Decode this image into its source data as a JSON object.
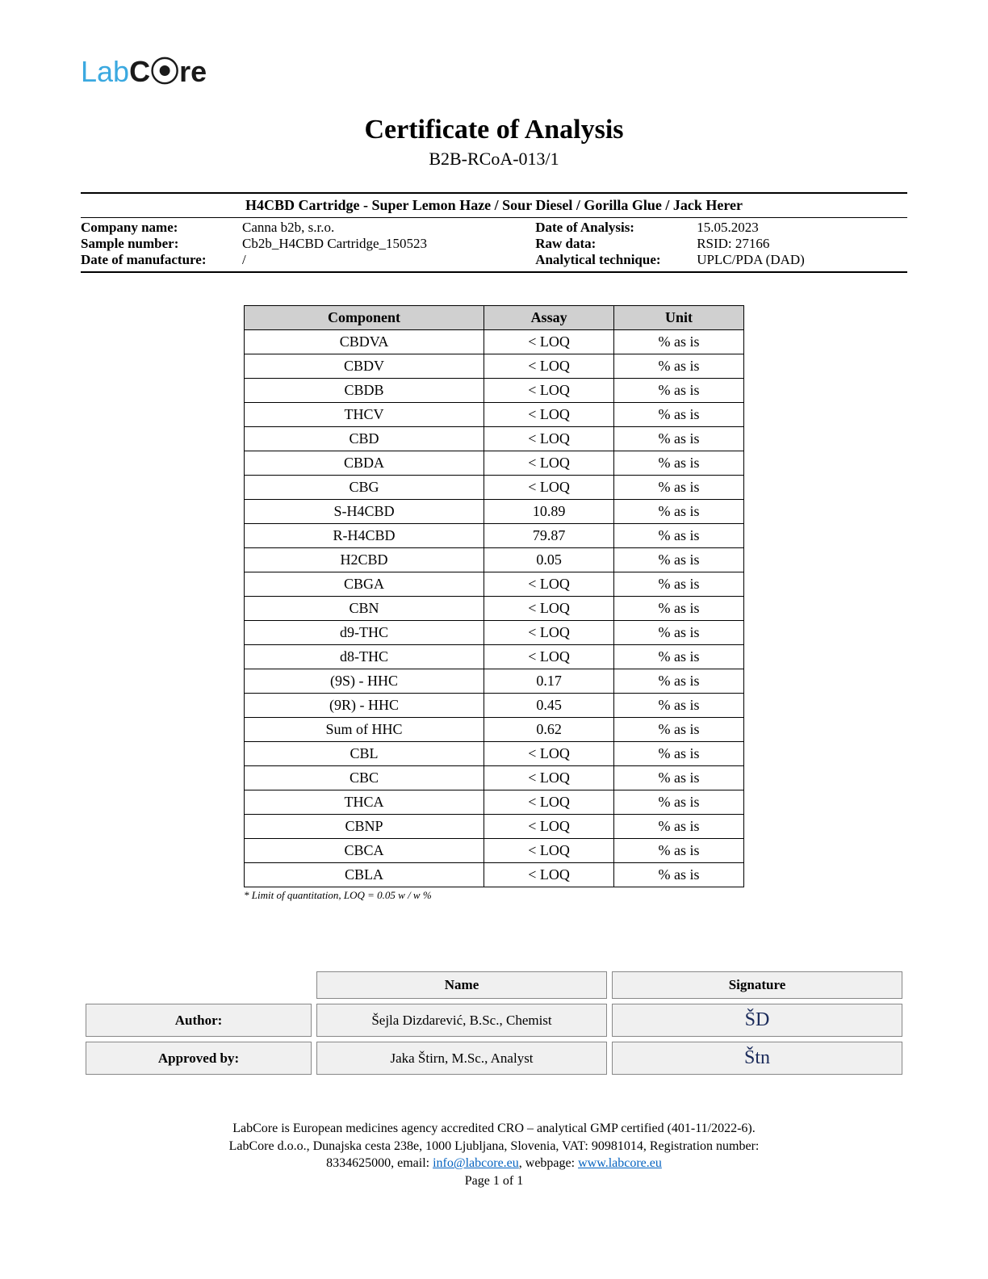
{
  "logo": {
    "part1": "Lab",
    "part2": "Core"
  },
  "title": "Certificate of Analysis",
  "subtitle": "B2B-RCoA-013/1",
  "product_name": "H4CBD Cartridge - Super Lemon Haze / Sour Diesel / Gorilla Glue / Jack Herer",
  "meta": {
    "company_label": "Company name:",
    "company_value": "Canna b2b, s.r.o.",
    "sample_label": "Sample number:",
    "sample_value": "Cb2b_H4CBD Cartridge_150523",
    "manufacture_label": "Date of manufacture:",
    "manufacture_value": "/",
    "date_label": "Date of Analysis:",
    "date_value": "15.05.2023",
    "raw_label": "Raw data:",
    "raw_value": "RSID: 27166",
    "technique_label": "Analytical technique:",
    "technique_value": "UPLC/PDA (DAD)"
  },
  "table": {
    "headers": {
      "component": "Component",
      "assay": "Assay",
      "unit": "Unit"
    },
    "rows": [
      {
        "component": "CBDVA",
        "assay": "< LOQ",
        "unit": "% as is"
      },
      {
        "component": "CBDV",
        "assay": "< LOQ",
        "unit": "% as is"
      },
      {
        "component": "CBDB",
        "assay": "< LOQ",
        "unit": "% as is"
      },
      {
        "component": "THCV",
        "assay": "< LOQ",
        "unit": "% as is"
      },
      {
        "component": "CBD",
        "assay": "< LOQ",
        "unit": "% as is"
      },
      {
        "component": "CBDA",
        "assay": "< LOQ",
        "unit": "% as is"
      },
      {
        "component": "CBG",
        "assay": "< LOQ",
        "unit": "% as is"
      },
      {
        "component": "S-H4CBD",
        "assay": "10.89",
        "unit": "% as is"
      },
      {
        "component": "R-H4CBD",
        "assay": "79.87",
        "unit": "% as is"
      },
      {
        "component": "H2CBD",
        "assay": "0.05",
        "unit": "% as is"
      },
      {
        "component": "CBGA",
        "assay": "< LOQ",
        "unit": "% as is"
      },
      {
        "component": "CBN",
        "assay": "< LOQ",
        "unit": "% as is"
      },
      {
        "component": "d9-THC",
        "assay": "< LOQ",
        "unit": "% as is"
      },
      {
        "component": "d8-THC",
        "assay": "< LOQ",
        "unit": "% as is"
      },
      {
        "component": "(9S) - HHC",
        "assay": "0.17",
        "unit": "% as is"
      },
      {
        "component": "(9R) - HHC",
        "assay": "0.45",
        "unit": "% as is"
      },
      {
        "component": "Sum of HHC",
        "assay": "0.62",
        "unit": "% as is"
      },
      {
        "component": "CBL",
        "assay": "< LOQ",
        "unit": "% as is"
      },
      {
        "component": "CBC",
        "assay": "< LOQ",
        "unit": "% as is"
      },
      {
        "component": "THCA",
        "assay": "< LOQ",
        "unit": "% as is"
      },
      {
        "component": "CBNP",
        "assay": "< LOQ",
        "unit": "% as is"
      },
      {
        "component": "CBCA",
        "assay": "< LOQ",
        "unit": "% as is"
      },
      {
        "component": "CBLA",
        "assay": "< LOQ",
        "unit": "% as is"
      }
    ],
    "footnote": "* Limit of quantitation, LOQ = 0.05 w / w  %"
  },
  "signoff": {
    "header_name": "Name",
    "header_sig": "Signature",
    "author_label": "Author:",
    "author_name": "Šejla Dizdarević, B.Sc., Chemist",
    "author_sig": "ŠD",
    "approved_label": "Approved by:",
    "approved_name": "Jaka Štirn, M.Sc., Analyst",
    "approved_sig": "Štn"
  },
  "footer": {
    "line1": "LabCore is European medicines agency accredited CRO – analytical GMP certified (401-11/2022-6).",
    "line2_a": "LabCore d.o.o., Dunajska cesta 238e, 1000 Ljubljana, Slovenia, VAT: 90981014, Registration number:",
    "line3_a": "8334625000, email: ",
    "email": "info@labcore.eu",
    "line3_b": ", webpage: ",
    "webpage": "www.labcore.eu",
    "page": "Page 1 of 1"
  },
  "colors": {
    "logo_blue": "#3ba9e0",
    "link": "#0563c1",
    "header_bg": "#d0d0d0",
    "signoff_bg": "#f0f0f0"
  }
}
